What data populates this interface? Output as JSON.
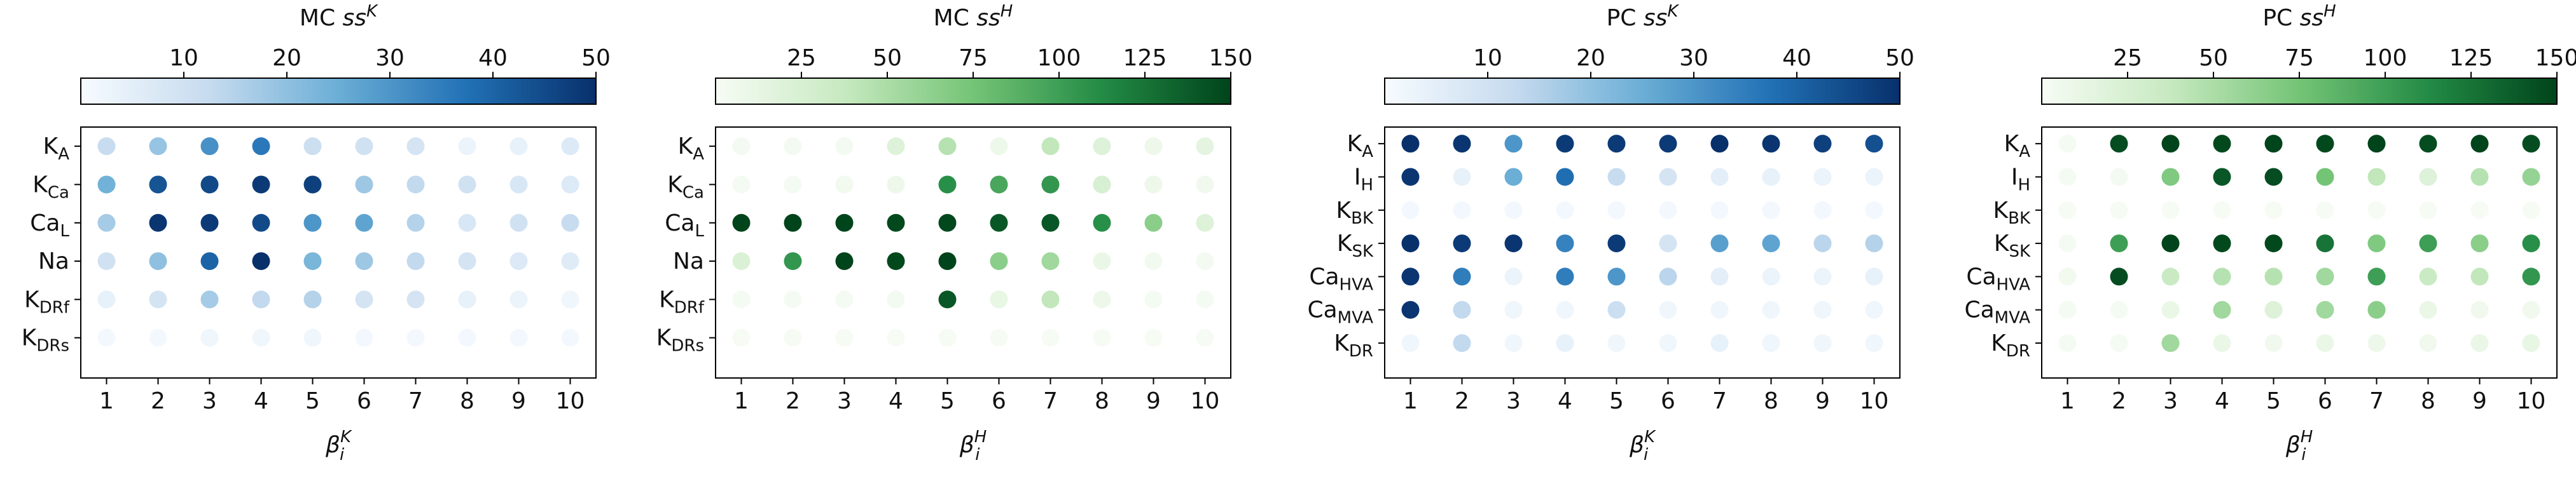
{
  "chart_data": [
    {
      "type": "scatter",
      "title": "MC ss^K",
      "title_main": "MC ",
      "title_var": "ss",
      "title_sup": "K",
      "colormap": "Blues",
      "cmap_stops": [
        "#f7fbff",
        "#c6dbef",
        "#6baed6",
        "#2171b5",
        "#08306b"
      ],
      "colorbar_range": [
        0,
        50
      ],
      "colorbar_ticks": [
        "10",
        "20",
        "30",
        "40",
        "50"
      ],
      "colorbar_tick_values": [
        10,
        20,
        30,
        40,
        50
      ],
      "xlabel": "β_i^K",
      "xlabel_sym": "β",
      "xlabel_sub": "i",
      "xlabel_sup": "K",
      "x": [
        "1",
        "2",
        "3",
        "4",
        "5",
        "6",
        "7",
        "8",
        "9",
        "10"
      ],
      "rows": [
        {
          "name": "K_A",
          "base": "K",
          "sub": "A",
          "values": [
            12,
            19,
            31,
            36,
            11,
            10,
            9,
            3,
            4,
            7
          ]
        },
        {
          "name": "K_Ca",
          "base": "K",
          "sub": "Ca",
          "values": [
            24,
            43,
            45,
            48,
            47,
            18,
            13,
            10,
            8,
            7
          ]
        },
        {
          "name": "Ca_L",
          "base": "Ca",
          "sub": "L",
          "values": [
            17,
            49,
            48,
            45,
            30,
            27,
            15,
            8,
            10,
            12
          ]
        },
        {
          "name": "Na",
          "base": "Na",
          "sub": "",
          "values": [
            10,
            20,
            40,
            50,
            23,
            18,
            13,
            9,
            7,
            6
          ]
        },
        {
          "name": "K_DRf",
          "base": "K",
          "sub": "DRf",
          "values": [
            4,
            9,
            17,
            13,
            15,
            9,
            9,
            4,
            3,
            2
          ]
        },
        {
          "name": "K_DRs",
          "base": "K",
          "sub": "DRs",
          "values": [
            1,
            1,
            2,
            2,
            2,
            1,
            1,
            1,
            1,
            1
          ]
        }
      ]
    },
    {
      "type": "scatter",
      "title": "MC ss^H",
      "title_main": "MC ",
      "title_var": "ss",
      "title_sup": "H",
      "colormap": "Greens",
      "cmap_stops": [
        "#f7fcf5",
        "#c7e9c0",
        "#74c476",
        "#238b45",
        "#00441b"
      ],
      "colorbar_range": [
        0,
        150
      ],
      "colorbar_ticks": [
        "25",
        "50",
        "75",
        "100",
        "125",
        "150"
      ],
      "colorbar_tick_values": [
        25,
        50,
        75,
        100,
        125,
        150
      ],
      "xlabel": "β_i^H",
      "xlabel_sym": "β",
      "xlabel_sub": "i",
      "xlabel_sup": "H",
      "x": [
        "1",
        "2",
        "3",
        "4",
        "5",
        "6",
        "7",
        "8",
        "9",
        "10"
      ],
      "rows": [
        {
          "name": "K_A",
          "base": "K",
          "sub": "A",
          "values": [
            3,
            3,
            3,
            20,
            45,
            8,
            40,
            20,
            8,
            15
          ]
        },
        {
          "name": "K_Ca",
          "base": "K",
          "sub": "Ca",
          "values": [
            2,
            2,
            4,
            8,
            110,
            95,
            105,
            25,
            8,
            5
          ]
        },
        {
          "name": "Ca_L",
          "base": "Ca",
          "sub": "L",
          "values": [
            150,
            150,
            150,
            148,
            148,
            140,
            140,
            110,
            65,
            20
          ]
        },
        {
          "name": "Na",
          "base": "Na",
          "sub": "",
          "values": [
            22,
            105,
            150,
            148,
            150,
            65,
            55,
            10,
            4,
            3
          ]
        },
        {
          "name": "K_DRf",
          "base": "K",
          "sub": "DRf",
          "values": [
            2,
            2,
            2,
            3,
            140,
            12,
            40,
            8,
            2,
            2
          ]
        },
        {
          "name": "K_DRs",
          "base": "K",
          "sub": "DRs",
          "values": [
            1,
            1,
            1,
            1,
            1,
            1,
            1,
            1,
            1,
            1
          ]
        }
      ]
    },
    {
      "type": "scatter",
      "title": "PC ss^K",
      "title_main": "PC ",
      "title_var": "ss",
      "title_sup": "K",
      "colormap": "Blues",
      "cmap_stops": [
        "#f7fbff",
        "#c6dbef",
        "#6baed6",
        "#2171b5",
        "#08306b"
      ],
      "colorbar_range": [
        0,
        50
      ],
      "colorbar_ticks": [
        "10",
        "20",
        "30",
        "40",
        "50"
      ],
      "colorbar_tick_values": [
        10,
        20,
        30,
        40,
        50
      ],
      "xlabel": "β_i^K",
      "xlabel_sym": "β",
      "xlabel_sub": "i",
      "xlabel_sup": "K",
      "x": [
        "1",
        "2",
        "3",
        "4",
        "5",
        "6",
        "7",
        "8",
        "9",
        "10"
      ],
      "rows": [
        {
          "name": "K_A",
          "base": "K",
          "sub": "A",
          "values": [
            50,
            49,
            30,
            48,
            48,
            48,
            50,
            49,
            47,
            44
          ]
        },
        {
          "name": "I_H",
          "base": "I",
          "sub": "H",
          "values": [
            49,
            4,
            25,
            38,
            12,
            9,
            5,
            4,
            3,
            3
          ]
        },
        {
          "name": "K_BK",
          "base": "K",
          "sub": "BK",
          "values": [
            1,
            1,
            1,
            1,
            1,
            1,
            1,
            1,
            1,
            1
          ]
        },
        {
          "name": "K_SK",
          "base": "K",
          "sub": "SK",
          "values": [
            50,
            48,
            49,
            34,
            48,
            9,
            28,
            27,
            14,
            15
          ]
        },
        {
          "name": "Ca_HVA",
          "base": "Ca",
          "sub": "HVA",
          "values": [
            49,
            35,
            3,
            35,
            30,
            14,
            5,
            3,
            3,
            4
          ]
        },
        {
          "name": "Ca_MVA",
          "base": "Ca",
          "sub": "MVA",
          "values": [
            49,
            13,
            2,
            2,
            11,
            2,
            2,
            2,
            2,
            2
          ]
        },
        {
          "name": "K_DR",
          "base": "K",
          "sub": "DR",
          "values": [
            2,
            13,
            2,
            4,
            2,
            2,
            4,
            2,
            2,
            2
          ]
        }
      ]
    },
    {
      "type": "scatter",
      "title": "PC ss^H",
      "title_main": "PC ",
      "title_var": "ss",
      "title_sup": "H",
      "colormap": "Greens",
      "cmap_stops": [
        "#f7fcf5",
        "#c7e9c0",
        "#74c476",
        "#238b45",
        "#00441b"
      ],
      "colorbar_range": [
        0,
        150
      ],
      "colorbar_ticks": [
        "25",
        "50",
        "75",
        "100",
        "125",
        "150"
      ],
      "colorbar_tick_values": [
        25,
        50,
        75,
        100,
        125,
        150
      ],
      "xlabel": "β_i^H",
      "xlabel_sym": "β",
      "xlabel_sub": "i",
      "xlabel_sup": "H",
      "x": [
        "1",
        "2",
        "3",
        "4",
        "5",
        "6",
        "7",
        "8",
        "9",
        "10"
      ],
      "rows": [
        {
          "name": "K_A",
          "base": "K",
          "sub": "A",
          "values": [
            2,
            145,
            150,
            148,
            150,
            148,
            150,
            145,
            150,
            145
          ]
        },
        {
          "name": "I_H",
          "base": "I",
          "sub": "H",
          "values": [
            2,
            3,
            70,
            140,
            145,
            75,
            40,
            20,
            45,
            60
          ]
        },
        {
          "name": "K_BK",
          "base": "K",
          "sub": "BK",
          "values": [
            1,
            1,
            1,
            1,
            1,
            1,
            1,
            1,
            1,
            1
          ]
        },
        {
          "name": "K_SK",
          "base": "K",
          "sub": "SK",
          "values": [
            2,
            100,
            150,
            148,
            148,
            125,
            70,
            100,
            65,
            110
          ]
        },
        {
          "name": "Ca_HVA",
          "base": "Ca",
          "sub": "HVA",
          "values": [
            4,
            145,
            35,
            45,
            45,
            55,
            100,
            35,
            40,
            105
          ]
        },
        {
          "name": "Ca_MVA",
          "base": "Ca",
          "sub": "MVA",
          "values": [
            2,
            2,
            10,
            55,
            20,
            55,
            65,
            10,
            5,
            5
          ]
        },
        {
          "name": "K_DR",
          "base": "K",
          "sub": "DR",
          "values": [
            2,
            2,
            55,
            10,
            5,
            10,
            8,
            5,
            10,
            12
          ]
        }
      ]
    }
  ]
}
